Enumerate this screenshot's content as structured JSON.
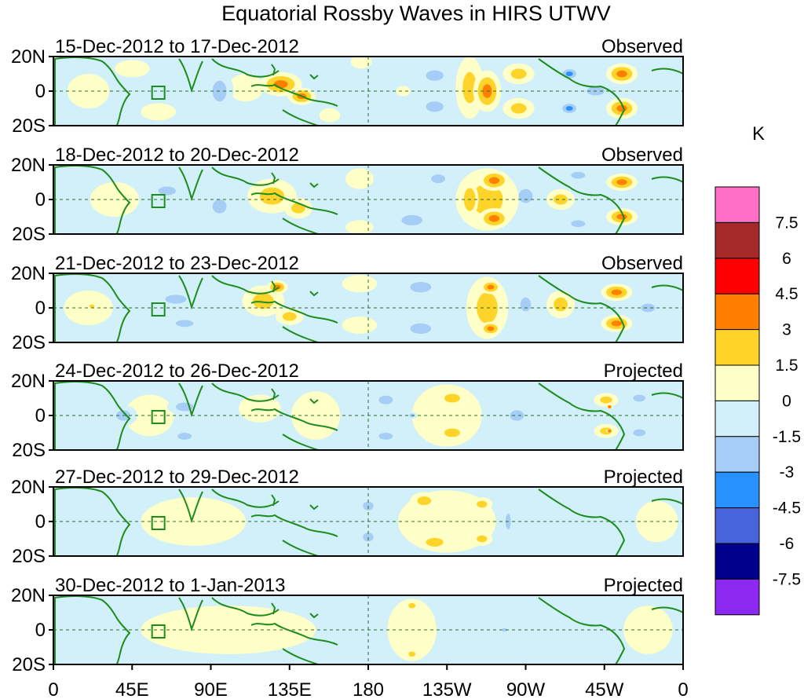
{
  "chart_data": {
    "type": "heatmap",
    "title": "Equatorial Rossby Waves in HIRS UTWV",
    "variable": "HIRS UTWV anomaly",
    "units": "K",
    "lon_ticks": [
      "0",
      "45E",
      "90E",
      "135E",
      "180",
      "135W",
      "90W",
      "45W",
      "0"
    ],
    "lat_ticks": [
      "20N",
      "0",
      "20S"
    ],
    "lon_range": [
      0,
      360
    ],
    "lat_range": [
      -20,
      20
    ],
    "colorbar": {
      "label": "K",
      "levels": [
        "7.5",
        "6",
        "4.5",
        "3",
        "1.5",
        "0",
        "-1.5",
        "-3",
        "-4.5",
        "-6",
        "-7.5"
      ],
      "colors": [
        "#ff6ec7",
        "#a52a2a",
        "#ff0000",
        "#ff7f00",
        "#ffd42a",
        "#ffffc8",
        "#d2f0fa",
        "#a5cdf5",
        "#2891ff",
        "#4664dc",
        "#00008c",
        "#8c28f0"
      ]
    },
    "panels": [
      {
        "period": "15-Dec-2012 to 17-Dec-2012",
        "kind": "Observed",
        "features": [
          {
            "lon": 130,
            "lat": 4,
            "value": 3.5,
            "rx": 12,
            "ry": 7
          },
          {
            "lon": 142,
            "lat": -3,
            "value": 3.2,
            "rx": 8,
            "ry": 5
          },
          {
            "lon": 110,
            "lat": 2,
            "value": 1.2,
            "rx": 10,
            "ry": 8
          },
          {
            "lon": 158,
            "lat": -14,
            "value": 1.2,
            "rx": 6,
            "ry": 4
          },
          {
            "lon": 176,
            "lat": 17,
            "value": 1.2,
            "rx": 6,
            "ry": 4
          },
          {
            "lon": 200,
            "lat": 0,
            "value": 1.3,
            "rx": 4,
            "ry": 3
          },
          {
            "lon": 248,
            "lat": 0,
            "value": 3.4,
            "rx": 8,
            "ry": 12
          },
          {
            "lon": 266,
            "lat": 10,
            "value": 2.4,
            "rx": 9,
            "ry": 6
          },
          {
            "lon": 266,
            "lat": -10,
            "value": 2.4,
            "rx": 9,
            "ry": 6
          },
          {
            "lon": 238,
            "lat": 2,
            "value": 1.6,
            "rx": 8,
            "ry": 18
          },
          {
            "lon": 325,
            "lat": 10,
            "value": 3.6,
            "rx": 9,
            "ry": 6
          },
          {
            "lon": 325,
            "lat": -10,
            "value": 3.6,
            "rx": 9,
            "ry": 6
          },
          {
            "lon": 295,
            "lat": 10,
            "value": -3.6,
            "rx": 6,
            "ry": 4
          },
          {
            "lon": 295,
            "lat": -10,
            "value": -3.6,
            "rx": 6,
            "ry": 4
          },
          {
            "lon": 95,
            "lat": 0,
            "value": -1.8,
            "rx": 8,
            "ry": 12
          },
          {
            "lon": 218,
            "lat": 9,
            "value": -1.8,
            "rx": 10,
            "ry": 6
          },
          {
            "lon": 218,
            "lat": -9,
            "value": -1.8,
            "rx": 10,
            "ry": 6
          },
          {
            "lon": 310,
            "lat": 0,
            "value": -1.6,
            "rx": 10,
            "ry": 5
          },
          {
            "lon": 45,
            "lat": 13,
            "value": 1.0,
            "rx": 10,
            "ry": 5
          },
          {
            "lon": 60,
            "lat": -12,
            "value": 1.0,
            "rx": 10,
            "ry": 5
          },
          {
            "lon": 20,
            "lat": 0,
            "value": 0.7,
            "rx": 12,
            "ry": 10
          },
          {
            "lon": 80,
            "lat": 15,
            "value": -1.0,
            "rx": 8,
            "ry": 4
          }
        ]
      },
      {
        "period": "18-Dec-2012 to 20-Dec-2012",
        "kind": "Observed",
        "features": [
          {
            "lon": 125,
            "lat": 2,
            "value": 2.6,
            "rx": 14,
            "ry": 10
          },
          {
            "lon": 140,
            "lat": -5,
            "value": 1.8,
            "rx": 8,
            "ry": 6
          },
          {
            "lon": 252,
            "lat": 11,
            "value": 3.6,
            "rx": 9,
            "ry": 6
          },
          {
            "lon": 252,
            "lat": -11,
            "value": 3.6,
            "rx": 9,
            "ry": 6
          },
          {
            "lon": 238,
            "lat": 0,
            "value": 3.0,
            "rx": 5,
            "ry": 10
          },
          {
            "lon": 248,
            "lat": 0,
            "value": 2.0,
            "rx": 18,
            "ry": 18
          },
          {
            "lon": 325,
            "lat": 10,
            "value": 3.6,
            "rx": 9,
            "ry": 5
          },
          {
            "lon": 325,
            "lat": -10,
            "value": 3.6,
            "rx": 9,
            "ry": 5
          },
          {
            "lon": 290,
            "lat": 0,
            "value": 2.0,
            "rx": 8,
            "ry": 6
          },
          {
            "lon": 270,
            "lat": 2,
            "value": -1.8,
            "rx": 8,
            "ry": 8
          },
          {
            "lon": 205,
            "lat": -12,
            "value": -1.8,
            "rx": 12,
            "ry": 6
          },
          {
            "lon": 220,
            "lat": 12,
            "value": -1.6,
            "rx": 8,
            "ry": 5
          },
          {
            "lon": 65,
            "lat": 5,
            "value": -1.7,
            "rx": 10,
            "ry": 5
          },
          {
            "lon": 95,
            "lat": -4,
            "value": -1.6,
            "rx": 8,
            "ry": 8
          },
          {
            "lon": 300,
            "lat": 14,
            "value": -1.7,
            "rx": 8,
            "ry": 4
          },
          {
            "lon": 300,
            "lat": -14,
            "value": -1.7,
            "rx": 8,
            "ry": 4
          },
          {
            "lon": 35,
            "lat": 0,
            "value": 0.8,
            "rx": 14,
            "ry": 10
          },
          {
            "lon": 175,
            "lat": 12,
            "value": 0.9,
            "rx": 8,
            "ry": 6
          },
          {
            "lon": 175,
            "lat": -16,
            "value": 0.8,
            "rx": 8,
            "ry": 4
          }
        ]
      },
      {
        "period": "21-Dec-2012 to 23-Dec-2012",
        "kind": "Observed",
        "features": [
          {
            "lon": 120,
            "lat": 4,
            "value": 2.6,
            "rx": 12,
            "ry": 9
          },
          {
            "lon": 128,
            "lat": 12,
            "value": 3.2,
            "rx": 6,
            "ry": 4
          },
          {
            "lon": 135,
            "lat": -5,
            "value": 1.8,
            "rx": 8,
            "ry": 5
          },
          {
            "lon": 248,
            "lat": 0,
            "value": 2.0,
            "rx": 12,
            "ry": 18
          },
          {
            "lon": 250,
            "lat": 12,
            "value": 3.4,
            "rx": 6,
            "ry": 4
          },
          {
            "lon": 250,
            "lat": -12,
            "value": 3.4,
            "rx": 6,
            "ry": 4
          },
          {
            "lon": 322,
            "lat": 9,
            "value": 3.6,
            "rx": 9,
            "ry": 5
          },
          {
            "lon": 322,
            "lat": -9,
            "value": 3.6,
            "rx": 9,
            "ry": 5
          },
          {
            "lon": 290,
            "lat": 2,
            "value": 1.8,
            "rx": 8,
            "ry": 8
          },
          {
            "lon": 210,
            "lat": 12,
            "value": -1.8,
            "rx": 12,
            "ry": 6
          },
          {
            "lon": 210,
            "lat": -12,
            "value": -1.8,
            "rx": 12,
            "ry": 6
          },
          {
            "lon": 70,
            "lat": 5,
            "value": -1.7,
            "rx": 12,
            "ry": 5
          },
          {
            "lon": 75,
            "lat": -9,
            "value": -1.6,
            "rx": 10,
            "ry": 4
          },
          {
            "lon": 270,
            "lat": 2,
            "value": -1.6,
            "rx": 6,
            "ry": 8
          },
          {
            "lon": 340,
            "lat": 0,
            "value": -1.6,
            "rx": 8,
            "ry": 5
          },
          {
            "lon": 22,
            "lat": 1,
            "value": 2.0,
            "rx": 3,
            "ry": 2
          },
          {
            "lon": 20,
            "lat": 0,
            "value": 0.8,
            "rx": 14,
            "ry": 10
          },
          {
            "lon": 175,
            "lat": 14,
            "value": 0.9,
            "rx": 10,
            "ry": 5
          },
          {
            "lon": 175,
            "lat": -10,
            "value": 0.8,
            "rx": 10,
            "ry": 5
          }
        ]
      },
      {
        "period": "24-Dec-2012 to 26-Dec-2012",
        "kind": "Projected",
        "features": [
          {
            "lon": 118,
            "lat": 4,
            "value": 1.2,
            "rx": 12,
            "ry": 8
          },
          {
            "lon": 228,
            "lat": 10,
            "value": 1.8,
            "rx": 9,
            "ry": 5
          },
          {
            "lon": 228,
            "lat": -10,
            "value": 1.8,
            "rx": 9,
            "ry": 5
          },
          {
            "lon": 225,
            "lat": 0,
            "value": 0.7,
            "rx": 20,
            "ry": 18
          },
          {
            "lon": 316,
            "lat": 9,
            "value": 1.8,
            "rx": 7,
            "ry": 4
          },
          {
            "lon": 316,
            "lat": -9,
            "value": 1.8,
            "rx": 7,
            "ry": 4
          },
          {
            "lon": 318,
            "lat": -9,
            "value": 3.2,
            "rx": 2,
            "ry": 1
          },
          {
            "lon": 318,
            "lat": 5,
            "value": 3.2,
            "rx": 2,
            "ry": 1
          },
          {
            "lon": 190,
            "lat": 9,
            "value": -1.7,
            "rx": 8,
            "ry": 5
          },
          {
            "lon": 190,
            "lat": -12,
            "value": -1.6,
            "rx": 8,
            "ry": 4
          },
          {
            "lon": 265,
            "lat": 0,
            "value": -1.6,
            "rx": 8,
            "ry": 6
          },
          {
            "lon": 205,
            "lat": 0,
            "value": -1.6,
            "rx": 3,
            "ry": 2
          },
          {
            "lon": 40,
            "lat": 0,
            "value": -1.6,
            "rx": 8,
            "ry": 6
          },
          {
            "lon": 75,
            "lat": 5,
            "value": -1.6,
            "rx": 10,
            "ry": 5
          },
          {
            "lon": 75,
            "lat": -12,
            "value": -1.6,
            "rx": 8,
            "ry": 4
          },
          {
            "lon": 335,
            "lat": 10,
            "value": -1.6,
            "rx": 7,
            "ry": 4
          },
          {
            "lon": 335,
            "lat": -10,
            "value": -1.6,
            "rx": 7,
            "ry": 4
          },
          {
            "lon": 150,
            "lat": 0,
            "value": 0.8,
            "rx": 14,
            "ry": 14
          },
          {
            "lon": 55,
            "lat": 0,
            "value": 0.8,
            "rx": 14,
            "ry": 12
          }
        ]
      },
      {
        "period": "27-Dec-2012 to 29-Dec-2012",
        "kind": "Projected",
        "features": [
          {
            "lon": 212,
            "lat": 12,
            "value": 1.8,
            "rx": 8,
            "ry": 5
          },
          {
            "lon": 218,
            "lat": -12,
            "value": 1.8,
            "rx": 10,
            "ry": 5
          },
          {
            "lon": 245,
            "lat": 10,
            "value": 1.8,
            "rx": 6,
            "ry": 4
          },
          {
            "lon": 245,
            "lat": -10,
            "value": 1.8,
            "rx": 6,
            "ry": 4
          },
          {
            "lon": 225,
            "lat": 0,
            "value": 0.8,
            "rx": 28,
            "ry": 18
          },
          {
            "lon": 80,
            "lat": 0,
            "value": 0.8,
            "rx": 30,
            "ry": 14
          },
          {
            "lon": 180,
            "lat": 9,
            "value": -1.7,
            "rx": 6,
            "ry": 5
          },
          {
            "lon": 180,
            "lat": -9,
            "value": -1.7,
            "rx": 6,
            "ry": 5
          },
          {
            "lon": 260,
            "lat": 0,
            "value": -1.6,
            "rx": 3,
            "ry": 9
          },
          {
            "lon": 300,
            "lat": 0,
            "value": -0.8,
            "rx": 18,
            "ry": 18
          },
          {
            "lon": 35,
            "lat": 0,
            "value": -0.6,
            "rx": 10,
            "ry": 10
          },
          {
            "lon": 345,
            "lat": 0,
            "value": 0.6,
            "rx": 12,
            "ry": 12
          }
        ]
      },
      {
        "period": "30-Dec-2012 to 1-Jan-2013",
        "kind": "Projected",
        "features": [
          {
            "lon": 205,
            "lat": 14,
            "value": 1.8,
            "rx": 4,
            "ry": 3
          },
          {
            "lon": 205,
            "lat": -14,
            "value": 1.8,
            "rx": 4,
            "ry": 3
          },
          {
            "lon": 205,
            "lat": 0,
            "value": 0.8,
            "rx": 14,
            "ry": 18
          },
          {
            "lon": 100,
            "lat": 0,
            "value": 0.8,
            "rx": 50,
            "ry": 14
          },
          {
            "lon": 240,
            "lat": 0,
            "value": -0.8,
            "rx": 18,
            "ry": 18
          },
          {
            "lon": 258,
            "lat": 0,
            "value": -1.6,
            "rx": 3,
            "ry": 2
          },
          {
            "lon": 340,
            "lat": 0,
            "value": 0.7,
            "rx": 14,
            "ry": 14
          },
          {
            "lon": 30,
            "lat": 0,
            "value": -0.6,
            "rx": 8,
            "ry": 10
          },
          {
            "lon": 170,
            "lat": 0,
            "value": -0.6,
            "rx": 8,
            "ry": 10
          }
        ]
      }
    ]
  }
}
